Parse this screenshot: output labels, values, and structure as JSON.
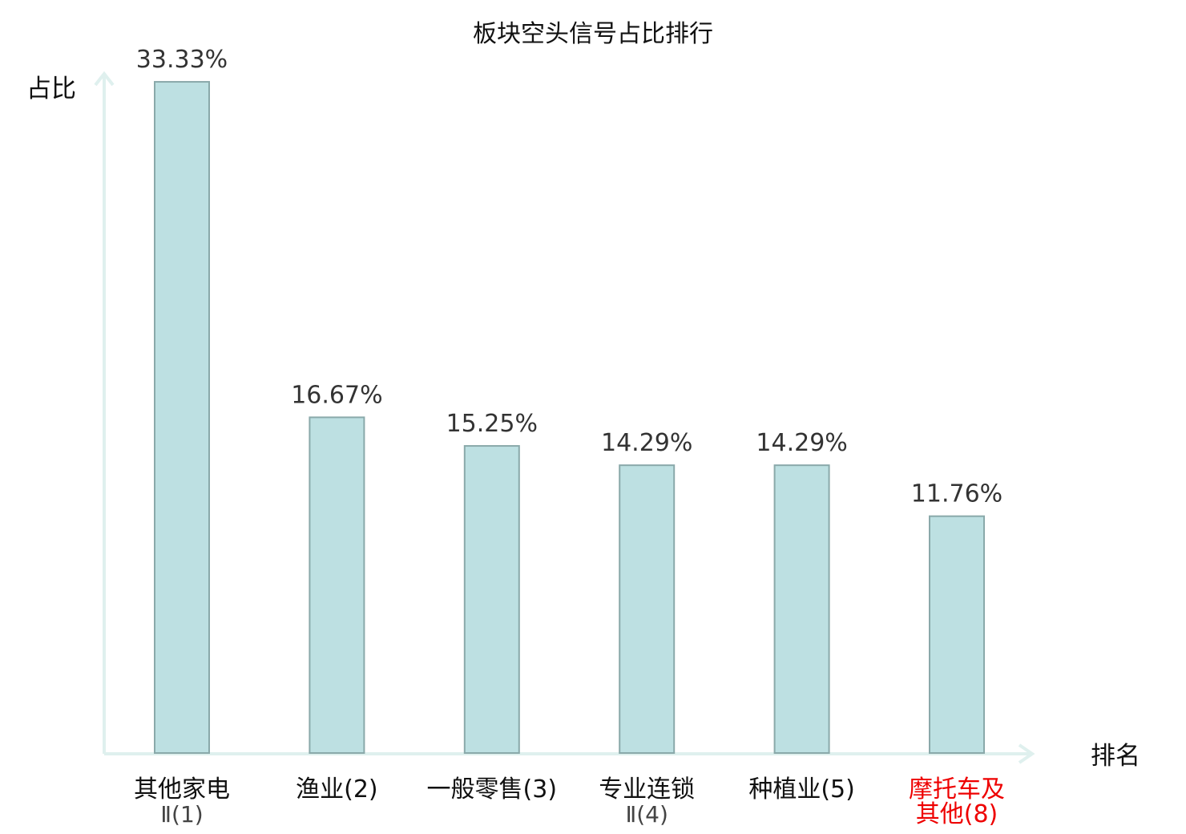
{
  "chart_data": {
    "type": "bar",
    "title": "板块空头信号占比排行",
    "ylabel": "占比",
    "xlabel": "排名",
    "ylim": [
      0,
      36
    ],
    "grid": false,
    "legend": "none",
    "categories": [
      {
        "line1": "其他家电",
        "line2": "Ⅱ(1)",
        "highlight": false
      },
      {
        "line1": "渔业(2)",
        "line2": "",
        "highlight": false
      },
      {
        "line1": "一般零售(3)",
        "line2": "",
        "highlight": false
      },
      {
        "line1": "专业连锁",
        "line2": "Ⅱ(4)",
        "highlight": false
      },
      {
        "line1": "种植业(5)",
        "line2": "",
        "highlight": false
      },
      {
        "line1": "摩托车及",
        "line2": "其他(8)",
        "highlight": true
      }
    ],
    "values": [
      33.33,
      16.67,
      15.25,
      14.29,
      14.29,
      11.76
    ],
    "value_labels": [
      "33.33%",
      "16.67%",
      "15.25%",
      "14.29%",
      "14.29%",
      "11.76%"
    ],
    "colors": {
      "bar_fill": "#bde0e2",
      "bar_stroke": "#8aa9aa",
      "axis": "#dff0ee",
      "highlight": "#ee0000"
    }
  }
}
